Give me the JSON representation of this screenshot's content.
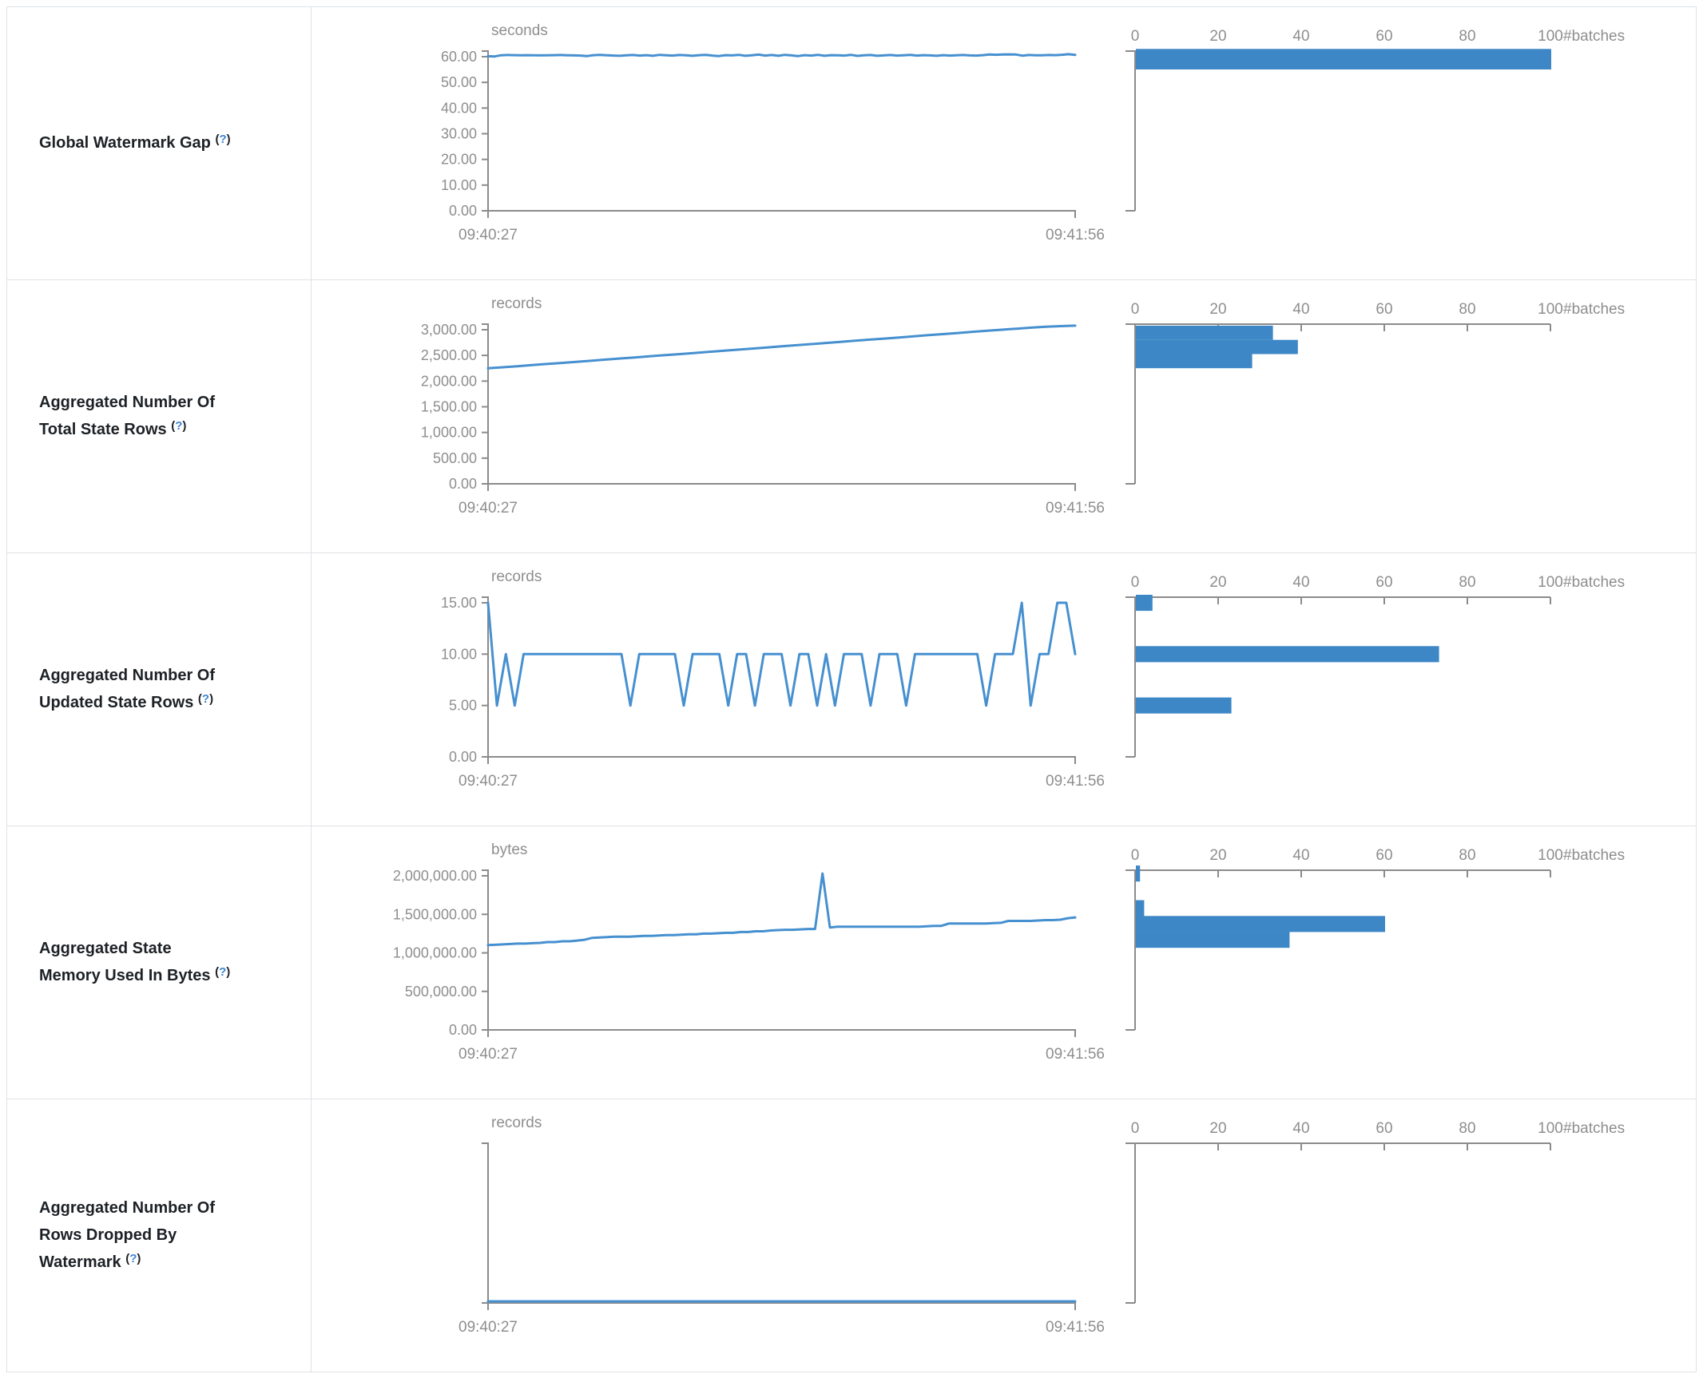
{
  "colors": {
    "line": "#4690d0",
    "bar": "#3d87c6",
    "axis": "#8b8b8b",
    "axis_text": "#8e8e8e",
    "metric_text": "#1d2125",
    "help_question": "#3d85d1",
    "table_border": "#dee2e6"
  },
  "help_label": "?",
  "chart_data": [
    {
      "type": "line",
      "metric": "Global Watermark Gap",
      "timeline": {
        "unit": "seconds",
        "x_start": "09:40:27",
        "x_end": "09:41:56",
        "y_max": 60,
        "y_ticks": [
          {
            "v": 60,
            "label": "60.00"
          },
          {
            "v": 50,
            "label": "50.00"
          },
          {
            "v": 40,
            "label": "40.00"
          },
          {
            "v": 30,
            "label": "30.00"
          },
          {
            "v": 20,
            "label": "20.00"
          },
          {
            "v": 10,
            "label": "10.00"
          },
          {
            "v": 0,
            "label": "0.00"
          }
        ],
        "values": [
          60.2,
          60.1,
          60.55,
          60.65,
          60.6,
          60.55,
          60.6,
          60.55,
          60.5,
          60.55,
          60.6,
          60.65,
          60.55,
          60.5,
          60.45,
          60.25,
          60.6,
          60.7,
          60.55,
          60.45,
          60.35,
          60.55,
          60.65,
          60.45,
          60.6,
          60.35,
          60.7,
          60.55,
          60.45,
          60.65,
          60.55,
          60.35,
          60.6,
          60.7,
          60.45,
          60.25,
          60.6,
          60.5,
          60.7,
          60.35,
          60.55,
          60.8,
          60.45,
          60.65,
          60.35,
          60.7,
          60.5,
          60.25,
          60.6,
          60.45,
          60.7,
          60.35,
          60.6,
          60.55,
          60.45,
          60.7,
          60.3,
          60.55,
          60.65,
          60.35,
          60.5,
          60.65,
          60.45,
          60.55,
          60.7,
          60.45,
          60.6,
          60.5,
          60.35,
          60.6,
          60.45,
          60.55,
          60.65,
          60.5,
          60.45,
          60.6,
          60.85,
          60.75,
          60.85,
          60.9,
          60.85,
          60.4,
          60.65,
          60.55,
          60.55,
          60.65,
          60.6,
          60.75,
          60.95,
          60.7
        ]
      },
      "histogram": {
        "x_label": "#batches",
        "x_ticks": [
          "0",
          "20",
          "40",
          "60",
          "80",
          "100"
        ],
        "bars": [
          {
            "bucket_top": 63,
            "bucket_bottom": 55,
            "batches": 100
          }
        ]
      }
    },
    {
      "type": "line",
      "metric": "Aggregated Number Of Total State Rows",
      "timeline": {
        "unit": "records",
        "x_start": "09:40:27",
        "x_end": "09:41:56",
        "y_max": 3000,
        "y_ticks": [
          {
            "v": 3000,
            "label": "3,000.00"
          },
          {
            "v": 2500,
            "label": "2,500.00"
          },
          {
            "v": 2000,
            "label": "2,000.00"
          },
          {
            "v": 1500,
            "label": "1,500.00"
          },
          {
            "v": 1000,
            "label": "1,000.00"
          },
          {
            "v": 500,
            "label": "500.00"
          },
          {
            "v": 0,
            "label": "0.00"
          }
        ],
        "values": [
          2250,
          2270,
          2290,
          2312,
          2333,
          2354,
          2375,
          2396,
          2418,
          2440,
          2460,
          2482,
          2504,
          2525,
          2546,
          2568,
          2590,
          2612,
          2633,
          2655,
          2676,
          2698,
          2720,
          2742,
          2763,
          2785,
          2807,
          2828,
          2850,
          2872,
          2894,
          2915,
          2937,
          2959,
          2980,
          3000,
          3020,
          3040,
          3058,
          3070,
          3080
        ]
      },
      "histogram": {
        "x_label": "#batches",
        "x_ticks": [
          "0",
          "20",
          "40",
          "60",
          "80",
          "100"
        ],
        "bars": [
          {
            "bucket_top": 3080,
            "bucket_bottom": 2803,
            "batches": 33
          },
          {
            "bucket_top": 2803,
            "bucket_bottom": 2527,
            "batches": 39
          },
          {
            "bucket_top": 2527,
            "bucket_bottom": 2250,
            "batches": 28
          }
        ]
      }
    },
    {
      "type": "line",
      "metric": "Aggregated Number Of Updated State Rows",
      "timeline": {
        "unit": "records",
        "x_start": "09:40:27",
        "x_end": "09:41:56",
        "y_max": 15,
        "y_ticks": [
          {
            "v": 15,
            "label": "15.00"
          },
          {
            "v": 10,
            "label": "10.00"
          },
          {
            "v": 5,
            "label": "5.00"
          },
          {
            "v": 0,
            "label": "0.00"
          }
        ],
        "values": [
          15,
          5,
          10,
          5,
          10,
          10,
          10,
          10,
          10,
          10,
          10,
          10,
          10,
          10,
          10,
          10,
          5,
          10,
          10,
          10,
          10,
          10,
          5,
          10,
          10,
          10,
          10,
          5,
          10,
          10,
          5,
          10,
          10,
          10,
          5,
          10,
          10,
          5,
          10,
          5,
          10,
          10,
          10,
          5,
          10,
          10,
          10,
          5,
          10,
          10,
          10,
          10,
          10,
          10,
          10,
          10,
          5,
          10,
          10,
          10,
          15,
          5,
          10,
          10,
          15,
          15,
          10
        ]
      },
      "histogram": {
        "x_label": "#batches",
        "x_ticks": [
          "0",
          "20",
          "40",
          "60",
          "80",
          "100"
        ],
        "bars": [
          {
            "bucket_top": 15.78,
            "bucket_bottom": 14.22,
            "batches": 4
          },
          {
            "bucket_top": 10.78,
            "bucket_bottom": 9.22,
            "batches": 73
          },
          {
            "bucket_top": 5.78,
            "bucket_bottom": 4.22,
            "batches": 23
          }
        ]
      }
    },
    {
      "type": "line",
      "metric": "Aggregated State Memory Used In Bytes",
      "timeline": {
        "unit": "bytes",
        "x_start": "09:40:27",
        "x_end": "09:41:56",
        "y_max": 2000000,
        "y_ticks": [
          {
            "v": 2000000,
            "label": "2,000,000.00"
          },
          {
            "v": 1500000,
            "label": "1,500,000.00"
          },
          {
            "v": 1000000,
            "label": "1,000,000.00"
          },
          {
            "v": 500000,
            "label": "500,000.00"
          },
          {
            "v": 0,
            "label": "0.00"
          }
        ],
        "values": [
          1100000,
          1105000,
          1110000,
          1115000,
          1120000,
          1120000,
          1125000,
          1130000,
          1140000,
          1140000,
          1150000,
          1150000,
          1160000,
          1170000,
          1195000,
          1200000,
          1205000,
          1210000,
          1210000,
          1210000,
          1215000,
          1220000,
          1220000,
          1225000,
          1230000,
          1230000,
          1235000,
          1240000,
          1240000,
          1250000,
          1250000,
          1255000,
          1260000,
          1260000,
          1270000,
          1270000,
          1280000,
          1280000,
          1290000,
          1295000,
          1300000,
          1300000,
          1305000,
          1310000,
          1310000,
          2030000,
          1330000,
          1340000,
          1340000,
          1340000,
          1340000,
          1340000,
          1340000,
          1340000,
          1340000,
          1340000,
          1340000,
          1340000,
          1340000,
          1345000,
          1350000,
          1350000,
          1380000,
          1380000,
          1380000,
          1380000,
          1380000,
          1380000,
          1385000,
          1390000,
          1415000,
          1415000,
          1415000,
          1415000,
          1420000,
          1425000,
          1425000,
          1430000,
          1450000,
          1460000
        ]
      },
      "histogram": {
        "x_label": "#batches",
        "x_ticks": [
          "0",
          "20",
          "40",
          "60",
          "80",
          "100"
        ],
        "bars": [
          {
            "bucket_top": 2134000,
            "bucket_bottom": 1926000,
            "batches": 1
          },
          {
            "bucket_top": 1684000,
            "bucket_bottom": 1476000,
            "batches": 2
          },
          {
            "bucket_top": 1479000,
            "bucket_bottom": 1271000,
            "batches": 60
          },
          {
            "bucket_top": 1274000,
            "bucket_bottom": 1066000,
            "batches": 37
          }
        ]
      }
    },
    {
      "type": "line",
      "metric": "Aggregated Number Of Rows Dropped By Watermark",
      "timeline": {
        "unit": "records",
        "x_start": "09:40:27",
        "x_end": "09:41:56",
        "y_max": null,
        "y_ticks": [],
        "values": [
          0,
          0,
          0,
          0,
          0,
          0,
          0,
          0,
          0,
          0
        ]
      },
      "histogram": {
        "x_label": "#batches",
        "x_ticks": [
          "0",
          "20",
          "40",
          "60",
          "80",
          "100"
        ],
        "bars": []
      }
    }
  ]
}
